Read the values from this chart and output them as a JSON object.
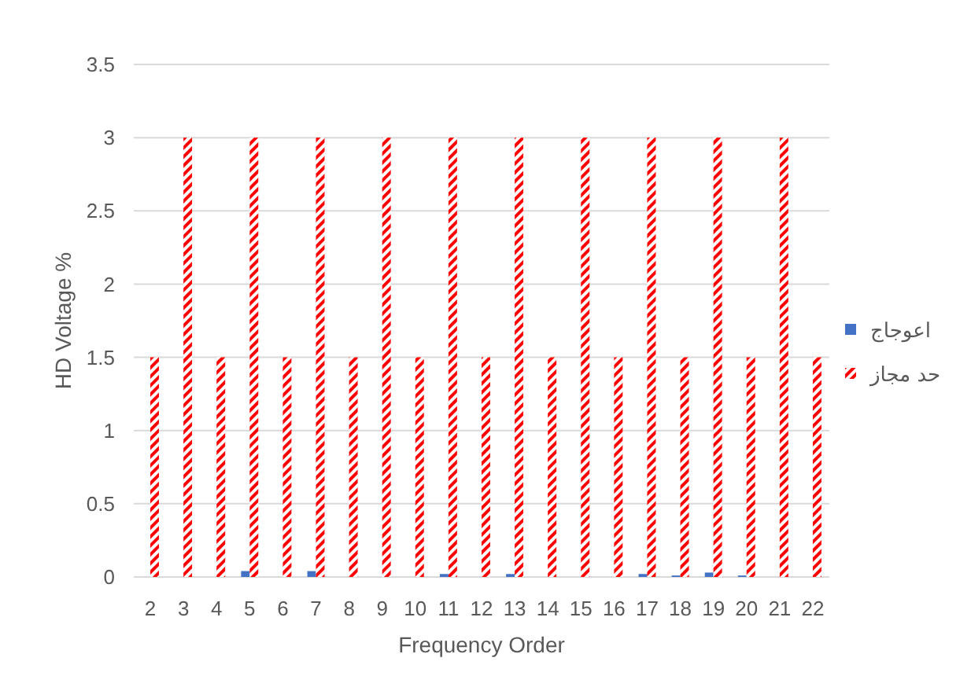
{
  "chart_data": {
    "type": "bar",
    "xlabel": "Frequency Order",
    "ylabel": "HD Voltage %",
    "categories": [
      "2",
      "3",
      "4",
      "5",
      "6",
      "7",
      "8",
      "9",
      "10",
      "11",
      "12",
      "13",
      "14",
      "15",
      "16",
      "17",
      "18",
      "19",
      "20",
      "21",
      "22"
    ],
    "series": [
      {
        "name": "اعوجاج",
        "color": "#4472c4",
        "values": [
          0,
          0,
          0,
          0.04,
          0,
          0.04,
          0,
          0,
          0,
          0.02,
          0,
          0.02,
          0,
          0,
          0,
          0.02,
          0.01,
          0.03,
          0.01,
          0,
          0
        ]
      },
      {
        "name": "حد مجاز",
        "color": "#ff0000",
        "values": [
          1.5,
          3,
          1.5,
          3,
          1.5,
          3,
          1.5,
          3,
          1.5,
          3,
          1.5,
          3,
          1.5,
          3,
          1.5,
          3,
          1.5,
          3,
          1.5,
          3,
          1.5
        ]
      }
    ],
    "ylim": [
      0,
      3.5
    ],
    "yticks": [
      0,
      0.5,
      1,
      1.5,
      2,
      2.5,
      3,
      3.5
    ],
    "grid": "y",
    "legend": "right"
  }
}
